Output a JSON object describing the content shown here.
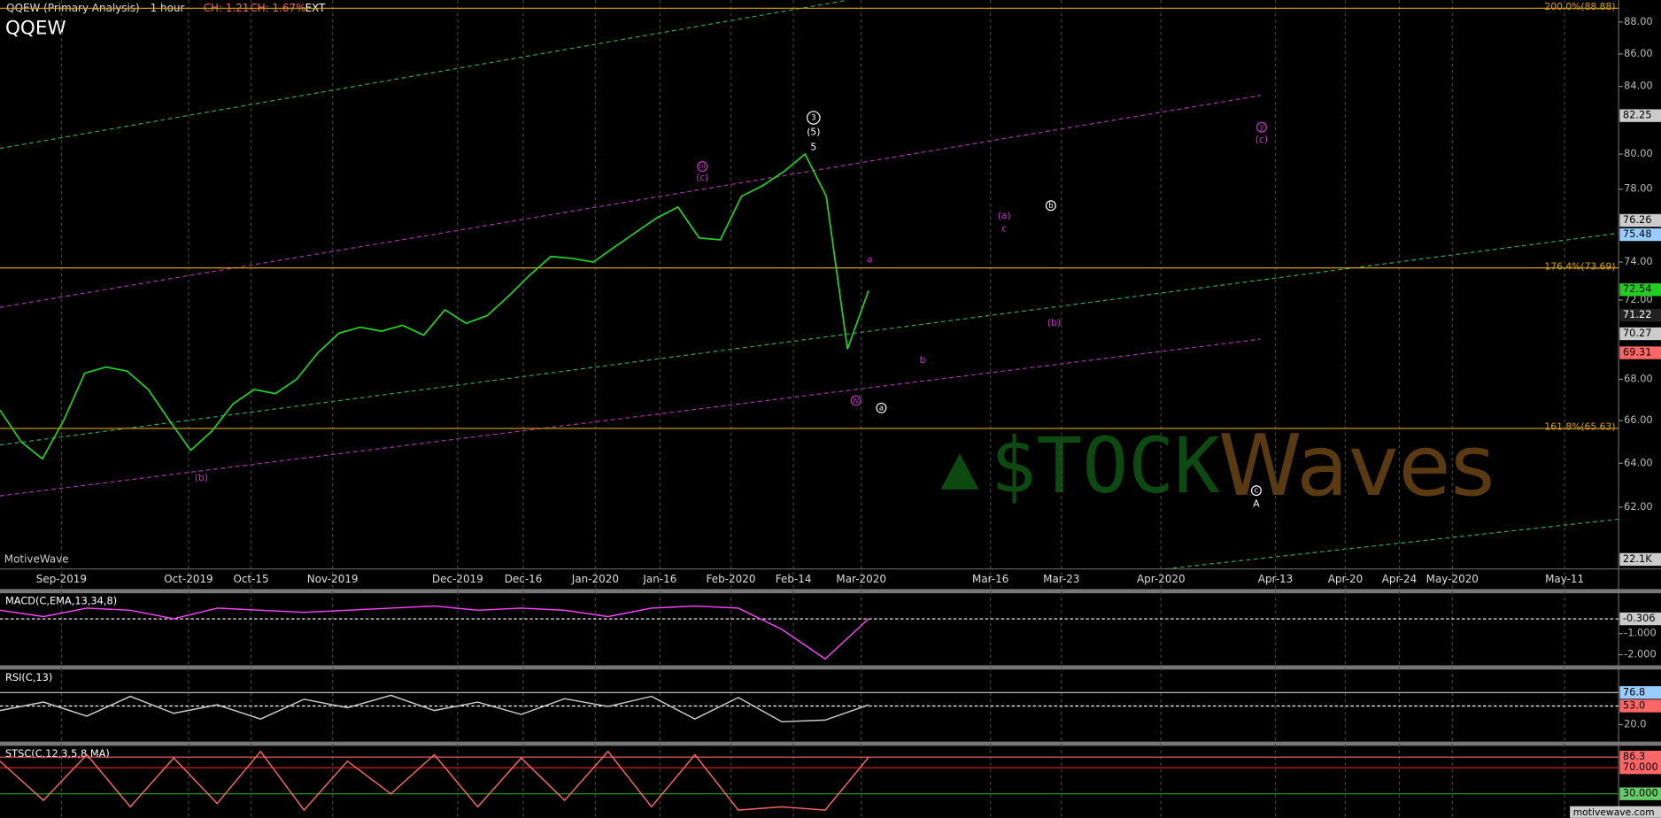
{
  "header": {
    "title": "QQEW (Primary Analysis) - 1 hour",
    "change": "CH: 1.21",
    "change_pct": "CH: 1.67%",
    "session": "EXT",
    "symbol": "QQEW"
  },
  "price_panel": {
    "log_scale": true,
    "ylim": [
      59.3,
      89.4
    ],
    "yticks": [
      {
        "value": 88,
        "label": "88.00"
      },
      {
        "value": 86,
        "label": "86.00"
      },
      {
        "value": 84,
        "label": "84.00"
      },
      {
        "value": 80,
        "label": "80.00"
      },
      {
        "value": 78,
        "label": "78.00"
      },
      {
        "value": 74,
        "label": "74.00"
      },
      {
        "value": 72,
        "label": "72.00"
      },
      {
        "value": 68,
        "label": "68.00"
      },
      {
        "value": 66,
        "label": "66.00"
      },
      {
        "value": 64,
        "label": "64.00"
      },
      {
        "value": 62,
        "label": "62.00"
      }
    ],
    "x_labels": [
      "Sep-2019",
      "Oct-2019",
      "Oct-15",
      "Nov-2019",
      "Dec-2019",
      "Dec-16",
      "Jan-2020",
      "Jan-16",
      "Feb-2020",
      "Feb-14",
      "Mar-2020",
      "Mar-16",
      "Mar-23",
      "Apr-2020",
      "Apr-13",
      "Apr-20",
      "Apr-24",
      "May-2020",
      "May-11"
    ],
    "close": [
      66.5,
      65,
      64.2,
      66,
      68.3,
      68.6,
      68.4,
      67.5,
      66,
      64.6,
      65.5,
      66.8,
      67.5,
      67.3,
      68,
      69.3,
      70.3,
      70.6,
      70.4,
      70.7,
      70.2,
      71.5,
      70.8,
      71.2,
      72.2,
      73.3,
      74.3,
      74.2,
      74,
      74.8,
      75.6,
      76.4,
      77,
      75.3,
      75.2,
      77.6,
      78.2,
      79,
      80,
      77.6,
      69.5,
      72.5
    ],
    "levels": [
      {
        "label": "200.0%(88.88)",
        "value": 88.88
      },
      {
        "label": "176.4%(73.69)",
        "value": 73.69
      },
      {
        "label": "161.8%(65.63)",
        "value": 65.63
      }
    ],
    "price_boxes": [
      82.25,
      76.26,
      75.48,
      72.54,
      71.22,
      70.27,
      69.31
    ],
    "volume_label": "22.1K",
    "annotations": [
      "3",
      "(5)",
      "5",
      "iii",
      "(c)",
      "a",
      "iv",
      "a",
      "(b)",
      "(a)",
      "c",
      "b",
      "(b)",
      "b",
      "y",
      "(c)",
      "c",
      "A"
    ],
    "watermark": [
      "$TOCK",
      "Waves"
    ],
    "brand": "MotiveWave"
  },
  "macd": {
    "title": "MACD(C,EMA,13,34,8)",
    "ylim": [
      -2.45,
      0.9
    ],
    "yticks": [
      {
        "value": -1,
        "label": "-1.000"
      },
      {
        "value": -2,
        "label": "-2.000"
      }
    ],
    "value_box": -0.306,
    "values": [
      0.1,
      -0.2,
      0.2,
      0.1,
      -0.3,
      0.2,
      0.1,
      0,
      0.1,
      0.2,
      0.3,
      0.1,
      0.2,
      0.1,
      -0.2,
      0.2,
      0.3,
      0.2,
      -0.8,
      -2.2,
      -0.3
    ]
  },
  "rsi": {
    "title": "RSI(C,13)",
    "ylim": [
      -10,
      117.5
    ],
    "yticks": [
      {
        "value": 20,
        "label": "20.0"
      }
    ],
    "value_boxes": [
      76.8,
      {
        "value": 53,
        "label": "53.0"
      }
    ],
    "values": [
      45,
      60,
      35,
      70,
      40,
      55,
      30,
      65,
      50,
      72,
      45,
      60,
      38,
      66,
      52,
      70,
      30,
      68,
      25,
      28,
      55
    ]
  },
  "stsc": {
    "title": "STSC(C,12,3,5,8,MA)",
    "ylim": [
      -3.6,
      103.6
    ],
    "value_boxes": [
      86.3,
      {
        "value": 70,
        "label": "70.000"
      },
      {
        "value": 30,
        "label": "30.000"
      }
    ],
    "values": [
      80,
      20,
      90,
      10,
      85,
      15,
      95,
      5,
      80,
      30,
      90,
      10,
      85,
      20,
      95,
      10,
      90,
      5,
      10,
      5,
      86
    ]
  },
  "footer": "motivewave.com"
}
